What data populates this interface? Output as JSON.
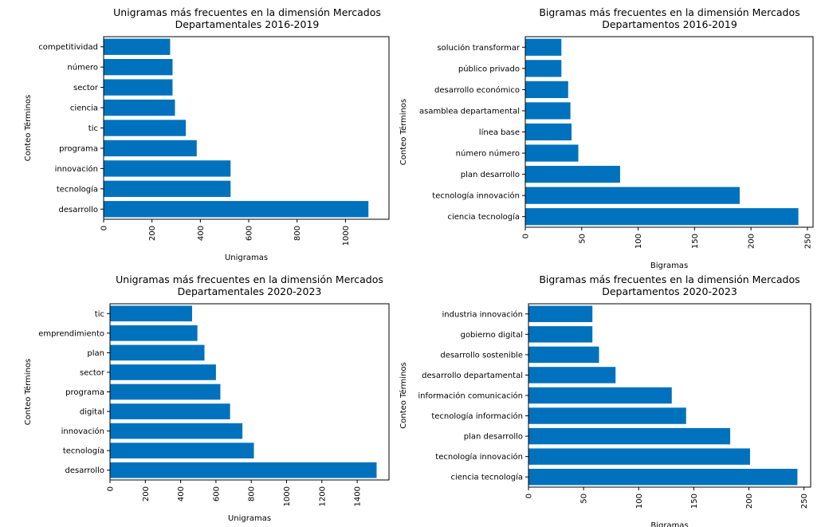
{
  "charts": [
    {
      "type": "bar",
      "orientation": "horizontal",
      "title_line1": "Unigramas más frecuentes en la dimensión Mercados",
      "title_line2": "Departamentales 2016-2019",
      "xlabel": "Unigramas",
      "ylabel": "Conteo Términos",
      "bar_color": "#0072bd",
      "xlim": [
        0,
        1180
      ],
      "xticks": [
        0,
        200,
        400,
        600,
        800,
        1000
      ],
      "categories": [
        "desarrollo",
        "tecnología",
        "innovación",
        "programa",
        "tic",
        "ciencia",
        "sector",
        "número",
        "competitividad"
      ],
      "values": [
        1095,
        525,
        525,
        385,
        340,
        295,
        285,
        285,
        275
      ]
    },
    {
      "type": "bar",
      "orientation": "horizontal",
      "title_line1": "Bigramas más frecuentes en la dimensión Mercados",
      "title_line2": "Departamentos 2016-2019",
      "xlabel": "Bigramas",
      "ylabel": "Conteo Términos",
      "bar_color": "#0072bd",
      "xlim": [
        0,
        255
      ],
      "xticks": [
        0,
        50,
        100,
        150,
        200,
        250
      ],
      "categories": [
        "ciencia tecnología",
        "tecnología innovación",
        "plan desarrollo",
        "número número",
        "línea base",
        "asamblea departamental",
        "desarrollo económico",
        "público privado",
        "solución transformar"
      ],
      "values": [
        242,
        190,
        84,
        47,
        41,
        40,
        38,
        32,
        32
      ]
    },
    {
      "type": "bar",
      "orientation": "horizontal",
      "title_line1": "Unigramas más frecuentes en la dimensión Mercados",
      "title_line2": "Departamentales 2020-2023",
      "xlabel": "Unigramas",
      "ylabel": "Conteo Términos",
      "bar_color": "#0072bd",
      "xlim": [
        0,
        1580
      ],
      "xticks": [
        0,
        200,
        400,
        600,
        800,
        1000,
        1200,
        1400
      ],
      "categories": [
        "desarrollo",
        "tecnología",
        "innovación",
        "digital",
        "programa",
        "sector",
        "plan",
        "emprendimiento",
        "tic"
      ],
      "values": [
        1510,
        815,
        750,
        680,
        625,
        600,
        535,
        495,
        465
      ]
    },
    {
      "type": "bar",
      "orientation": "horizontal",
      "title_line1": "Bigramas más frecuentes en la dimensión Mercados",
      "title_line2": "Departamentos 2020-2023",
      "xlabel": "Bigramas",
      "ylabel": "Conteo Términos",
      "bar_color": "#0072bd",
      "xlim": [
        0,
        256
      ],
      "xticks": [
        0,
        50,
        100,
        150,
        200,
        250
      ],
      "categories": [
        "ciencia tecnología",
        "tecnología innovación",
        "plan desarrollo",
        "tecnología información",
        "información comunicación",
        "desarrollo departamental",
        "desarrollo sostenible",
        "gobierno digital",
        "industria innovación"
      ],
      "values": [
        244,
        201,
        183,
        143,
        130,
        79,
        64,
        58,
        58
      ]
    }
  ]
}
